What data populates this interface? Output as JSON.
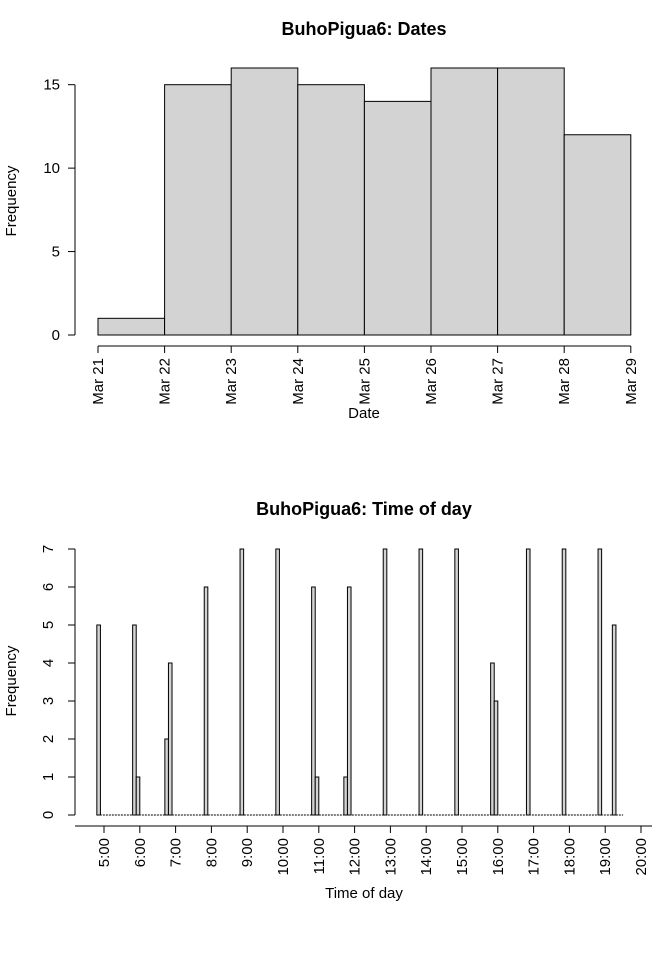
{
  "chart_data": [
    {
      "type": "bar",
      "title": "BuhoPigua6: Dates",
      "xlabel": "Date",
      "ylabel": "Frequency",
      "x_ticks": [
        "Mar 21",
        "Mar 22",
        "Mar 23",
        "Mar 24",
        "Mar 25",
        "Mar 26",
        "Mar 27",
        "Mar 28",
        "Mar 29"
      ],
      "categories": [
        "Mar 21",
        "Mar 22",
        "Mar 23",
        "Mar 24",
        "Mar 25",
        "Mar 26",
        "Mar 27",
        "Mar 28"
      ],
      "values": [
        1,
        15,
        16,
        15,
        14,
        16,
        16,
        12
      ],
      "y_ticks": [
        0,
        5,
        10,
        15
      ],
      "ylim": [
        0,
        16
      ],
      "grid": false
    },
    {
      "type": "bar",
      "title": "BuhoPigua6: Time of day",
      "xlabel": "Time of day",
      "ylabel": "Frequency",
      "x_ticks": [
        "5:00",
        "6:00",
        "7:00",
        "8:00",
        "9:00",
        "10:00",
        "11:00",
        "12:00",
        "13:00",
        "14:00",
        "15:00",
        "16:00",
        "17:00",
        "18:00",
        "19:00",
        "20:00"
      ],
      "bin_width_hours": 0.1,
      "x_range": [
        4.8,
        19.4
      ],
      "bars": [
        {
          "x": 4.8,
          "value": 5
        },
        {
          "x": 5.8,
          "value": 5
        },
        {
          "x": 5.9,
          "value": 1
        },
        {
          "x": 6.7,
          "value": 2
        },
        {
          "x": 6.8,
          "value": 4
        },
        {
          "x": 7.8,
          "value": 6
        },
        {
          "x": 8.8,
          "value": 7
        },
        {
          "x": 9.8,
          "value": 7
        },
        {
          "x": 10.8,
          "value": 6
        },
        {
          "x": 10.9,
          "value": 1
        },
        {
          "x": 11.7,
          "value": 1
        },
        {
          "x": 11.8,
          "value": 6
        },
        {
          "x": 12.8,
          "value": 7
        },
        {
          "x": 13.8,
          "value": 7
        },
        {
          "x": 14.8,
          "value": 7
        },
        {
          "x": 15.8,
          "value": 4
        },
        {
          "x": 15.9,
          "value": 3
        },
        {
          "x": 16.8,
          "value": 7
        },
        {
          "x": 17.8,
          "value": 7
        },
        {
          "x": 18.8,
          "value": 7
        },
        {
          "x": 19.2,
          "value": 5
        }
      ],
      "y_ticks": [
        0,
        1,
        2,
        3,
        4,
        5,
        6,
        7
      ],
      "ylim": [
        0,
        7
      ],
      "grid": false
    }
  ]
}
